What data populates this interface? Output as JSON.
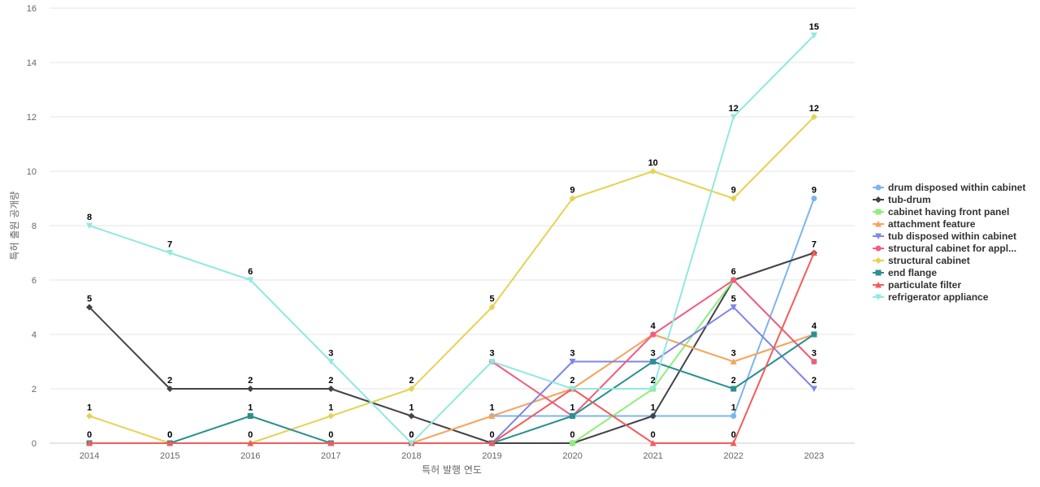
{
  "chart_data": {
    "type": "line",
    "xlabel": "특허 발행 연도",
    "ylabel": "특허 출원 공개량",
    "ylim": [
      0,
      16
    ],
    "yticks": [
      0,
      2,
      4,
      6,
      8,
      10,
      12,
      14,
      16
    ],
    "grid": true,
    "legend_position": "right",
    "x": [
      "2014",
      "2015",
      "2016",
      "2017",
      "2018",
      "2019",
      "2020",
      "2021",
      "2022",
      "2023"
    ],
    "series": [
      {
        "name": "drum disposed within cabinet",
        "color": "#7cb5ec",
        "marker": "circle",
        "values": [
          null,
          null,
          null,
          null,
          null,
          1,
          1,
          1,
          1,
          9
        ],
        "labels": [
          null,
          null,
          null,
          null,
          null,
          null,
          null,
          null,
          1,
          9
        ]
      },
      {
        "name": "tub-drum",
        "color": "#434348",
        "marker": "diamond",
        "values": [
          5,
          2,
          2,
          2,
          1,
          0,
          0,
          1,
          6,
          7
        ],
        "labels": [
          5,
          2,
          2,
          2,
          1,
          0,
          null,
          1,
          6,
          7
        ]
      },
      {
        "name": "cabinet having front panel",
        "color": "#90ed7d",
        "marker": "square",
        "values": [
          null,
          null,
          null,
          null,
          null,
          null,
          0,
          2,
          6,
          3
        ],
        "labels": [
          null,
          null,
          null,
          null,
          null,
          null,
          0,
          2,
          null,
          null
        ]
      },
      {
        "name": "attachment feature",
        "color": "#f7a35c",
        "marker": "triangle",
        "values": [
          null,
          null,
          null,
          null,
          0,
          1,
          2,
          4,
          3,
          4
        ],
        "labels": [
          null,
          null,
          null,
          null,
          null,
          1,
          2,
          4,
          3,
          null
        ]
      },
      {
        "name": "tub disposed within cabinet",
        "color": "#8085e9",
        "marker": "triangle-down",
        "values": [
          null,
          null,
          null,
          null,
          null,
          0,
          3,
          3,
          5,
          2
        ],
        "labels": [
          null,
          null,
          null,
          null,
          null,
          null,
          3,
          null,
          5,
          2
        ]
      },
      {
        "name": "structural cabinet for appl...",
        "color": "#f15c80",
        "marker": "circle",
        "values": [
          null,
          null,
          null,
          null,
          null,
          3,
          1,
          4,
          6,
          3
        ],
        "labels": [
          null,
          null,
          null,
          null,
          null,
          3,
          null,
          null,
          null,
          3
        ]
      },
      {
        "name": "structural cabinet",
        "color": "#e4d354",
        "marker": "diamond",
        "values": [
          1,
          0,
          0,
          1,
          2,
          5,
          9,
          10,
          9,
          12
        ],
        "labels": [
          1,
          0,
          0,
          1,
          2,
          5,
          9,
          10,
          9,
          12
        ]
      },
      {
        "name": "end flange",
        "color": "#2b908f",
        "marker": "square",
        "values": [
          0,
          0,
          1,
          0,
          0,
          0,
          1,
          3,
          2,
          4
        ],
        "labels": [
          0,
          0,
          1,
          0,
          0,
          null,
          1,
          3,
          2,
          4
        ]
      },
      {
        "name": "particulate filter",
        "color": "#f45b5b",
        "marker": "triangle",
        "values": [
          0,
          0,
          0,
          0,
          0,
          0,
          2,
          0,
          0,
          7
        ],
        "labels": [
          null,
          null,
          null,
          null,
          null,
          null,
          null,
          0,
          0,
          null
        ]
      },
      {
        "name": "refrigerator appliance",
        "color": "#91e8e1",
        "marker": "triangle-down",
        "values": [
          8,
          7,
          6,
          3,
          0,
          3,
          2,
          2,
          12,
          15
        ],
        "labels": [
          8,
          7,
          6,
          3,
          0,
          null,
          null,
          null,
          12,
          15
        ]
      }
    ]
  }
}
